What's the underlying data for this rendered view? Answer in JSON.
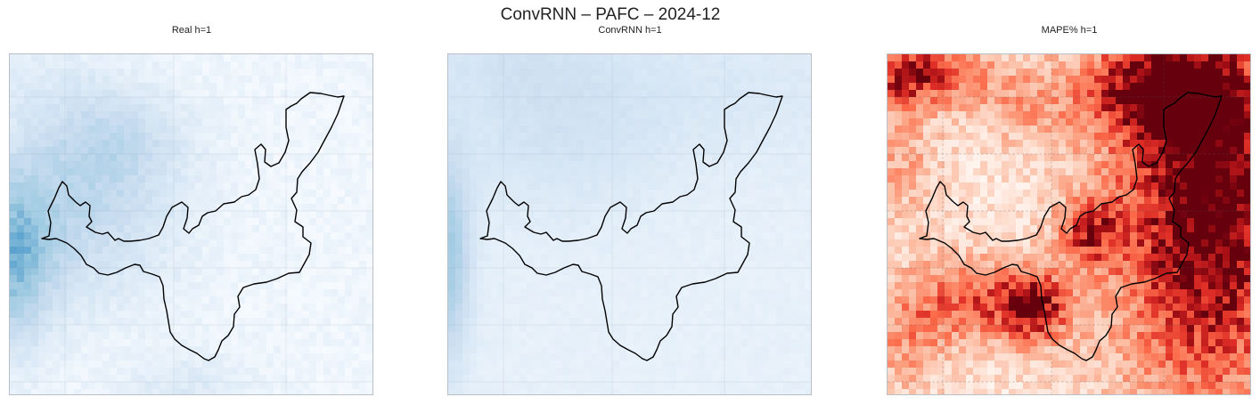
{
  "figure": {
    "suptitle": "ConvRNN – PAFC – 2024-12"
  },
  "chart_data": [
    {
      "type": "heatmap",
      "title": "Real h=1",
      "colormap": "Blues",
      "grid": true,
      "description_levels": "light blue field, stronger values along the left edge and a patch around the western part of the outlined region"
    },
    {
      "type": "heatmap",
      "title": "ConvRNN h=1",
      "colormap": "Blues",
      "grid": true,
      "description_levels": "smooth light blue field, slightly stronger on the far left edge"
    },
    {
      "type": "heatmap",
      "title": "MAPE% h=1",
      "colormap": "Reds",
      "grid": true,
      "description_levels": "high error (dark red) in the east half and top-left corner, moderate errors in the centre and south-west"
    }
  ],
  "colors": {
    "blues_low": "#f7fbff",
    "blues_high": "#4a98c9",
    "reds_low": "#fff5f0",
    "reds_high": "#67000d",
    "outline": "#000000",
    "frame": "#b9c0c9"
  }
}
